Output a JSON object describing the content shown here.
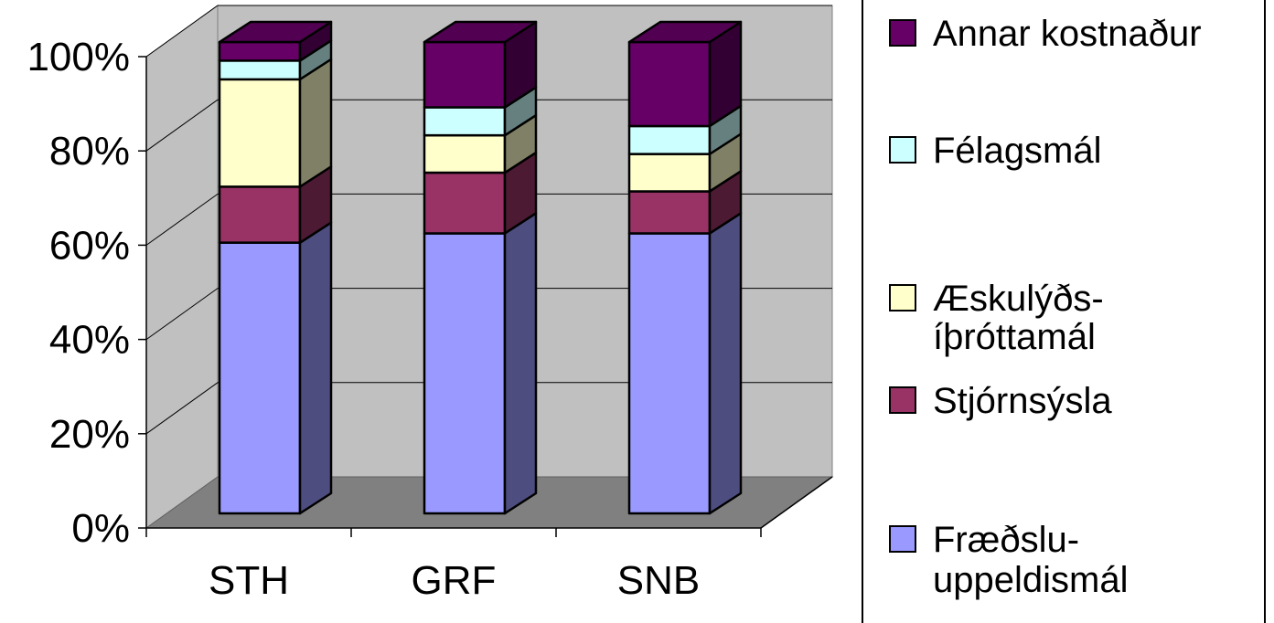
{
  "chart_data": {
    "type": "bar",
    "stacked": "100%",
    "three_d": true,
    "categories": [
      "STH",
      "GRF",
      "SNB"
    ],
    "series": [
      {
        "name": "Fræðslu-uppeldismál",
        "legend_lines": [
          "Fræðslu-",
          "uppeldismál"
        ],
        "values": [
          58,
          60,
          60
        ],
        "color": "#9999ff"
      },
      {
        "name": "Stjórnsýsla",
        "legend_lines": [
          "Stjórnsýsla"
        ],
        "values": [
          12,
          13,
          9
        ],
        "color": "#993366"
      },
      {
        "name": "Æskulýðs-íþróttamál",
        "legend_lines": [
          "Æskulýðs-",
          "íþróttamál"
        ],
        "values": [
          23,
          8,
          8
        ],
        "color": "#ffffcc"
      },
      {
        "name": "Félagsmál",
        "legend_lines": [
          "Félagsmál"
        ],
        "values": [
          4,
          6,
          6
        ],
        "color": "#ccffff"
      },
      {
        "name": "Annar kostnaður",
        "legend_lines": [
          "Annar kostnaður"
        ],
        "values": [
          4,
          14,
          18
        ],
        "color": "#660066"
      }
    ],
    "y_ticks": [
      "0%",
      "20%",
      "40%",
      "60%",
      "80%",
      "100%"
    ],
    "ylim": [
      0,
      100
    ],
    "grid": true,
    "legend_position": "right",
    "wall_color": "#c0c0c0",
    "floor_color": "#808080"
  }
}
